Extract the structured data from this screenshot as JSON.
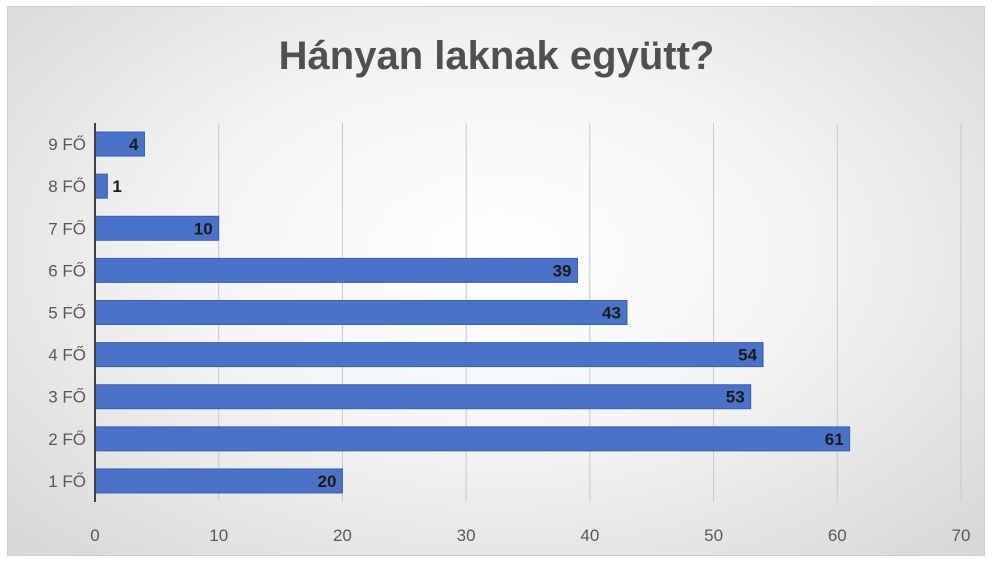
{
  "chart_data": {
    "type": "bar",
    "orientation": "horizontal",
    "title": "Hányan laknak együtt?",
    "categories": [
      "1 FŐ",
      "2 FŐ",
      "3 FŐ",
      "4 FŐ",
      "5 FŐ",
      "6 FŐ",
      "7 FŐ",
      "8 FŐ",
      "9 FŐ"
    ],
    "values": [
      20,
      61,
      53,
      54,
      43,
      39,
      10,
      1,
      4
    ],
    "xlim": [
      0,
      70
    ],
    "xticks": [
      "0",
      "10",
      "20",
      "30",
      "40",
      "50",
      "60",
      "70"
    ],
    "grid": true,
    "legend": "none",
    "data_labels": true,
    "colors": {
      "bar": "#4a73c8",
      "bar_edge": "#3a5fae",
      "grid": "#c9c9c9",
      "axis": "#404040",
      "label": "#1a1a1a"
    }
  }
}
